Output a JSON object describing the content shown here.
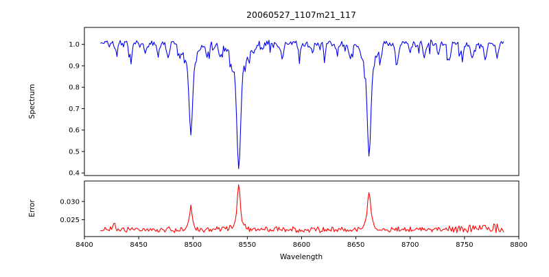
{
  "figure_title": "20060527_1107m21_117",
  "chart_data": [
    {
      "type": "line",
      "name": "spectrum-panel",
      "title": "20060527_1107m21_117",
      "ylabel": "Spectrum",
      "line_color": "#0000ee",
      "xlim": [
        8400,
        8800
      ],
      "ylim": [
        0.388,
        1.079
      ],
      "ytick_labels": [
        "1.0",
        "0.9",
        "0.8",
        "0.7",
        "0.6",
        "0.5",
        "0.4"
      ],
      "x_start": 8415,
      "x_end": 8786,
      "x_step": 1,
      "continuum": 1.003,
      "clip_max": 1.032,
      "noise": {
        "seed": 527,
        "amp1": 0.022,
        "amp2": 0.016,
        "spike_prob": 0.12,
        "spike_max": 0.055
      },
      "absorption_lines": [
        {
          "center": 8498.0,
          "core_depth": 0.31,
          "core_sigma": 1.5,
          "wing_depth": 0.105,
          "wing_sigma": 5.0,
          "min_value": 0.585
        },
        {
          "center": 8542.1,
          "core_depth": 0.45,
          "core_sigma": 1.7,
          "wing_depth": 0.13,
          "wing_sigma": 6.5,
          "min_value": 0.42
        },
        {
          "center": 8662.1,
          "core_depth": 0.4,
          "core_sigma": 1.6,
          "wing_depth": 0.125,
          "wing_sigma": 5.5,
          "min_value": 0.47
        }
      ],
      "minor_lines": [
        {
          "c": 8430,
          "d": 0.045,
          "w": 1.0
        },
        {
          "c": 8443,
          "d": 0.065,
          "w": 1.1
        },
        {
          "c": 8456,
          "d": 0.05,
          "w": 0.9
        },
        {
          "c": 8468,
          "d": 0.045,
          "w": 1.0
        },
        {
          "c": 8477,
          "d": 0.065,
          "w": 1.2
        },
        {
          "c": 8488,
          "d": 0.055,
          "w": 1.0
        },
        {
          "c": 8513,
          "d": 0.055,
          "w": 1.0
        },
        {
          "c": 8519,
          "d": 0.04,
          "w": 0.8
        },
        {
          "c": 8525,
          "d": 0.065,
          "w": 1.1
        },
        {
          "c": 8536,
          "d": 0.05,
          "w": 0.9
        },
        {
          "c": 8556,
          "d": 0.045,
          "w": 1.0
        },
        {
          "c": 8564,
          "d": 0.04,
          "w": 0.9
        },
        {
          "c": 8582,
          "d": 0.075,
          "w": 1.2
        },
        {
          "c": 8598,
          "d": 0.055,
          "w": 1.0
        },
        {
          "c": 8610,
          "d": 0.045,
          "w": 0.9
        },
        {
          "c": 8621,
          "d": 0.05,
          "w": 1.0
        },
        {
          "c": 8633,
          "d": 0.04,
          "w": 0.9
        },
        {
          "c": 8645,
          "d": 0.075,
          "w": 1.2
        },
        {
          "c": 8673,
          "d": 0.05,
          "w": 0.9
        },
        {
          "c": 8688,
          "d": 0.09,
          "w": 1.3
        },
        {
          "c": 8700,
          "d": 0.05,
          "w": 0.9
        },
        {
          "c": 8713,
          "d": 0.065,
          "w": 1.1
        },
        {
          "c": 8726,
          "d": 0.05,
          "w": 0.9
        },
        {
          "c": 8736,
          "d": 0.09,
          "w": 1.3
        },
        {
          "c": 8748,
          "d": 0.06,
          "w": 1.0
        },
        {
          "c": 8757,
          "d": 0.075,
          "w": 1.1
        },
        {
          "c": 8769,
          "d": 0.09,
          "w": 1.2
        },
        {
          "c": 8780,
          "d": 0.055,
          "w": 1.0
        }
      ]
    },
    {
      "type": "line",
      "name": "error-panel",
      "ylabel": "Error",
      "xlabel": "Wavelength",
      "line_color": "#ff0000",
      "xlim": [
        8400,
        8800
      ],
      "ylim": [
        0.0204,
        0.0356
      ],
      "ytick_labels": [
        "0.030",
        "0.025"
      ],
      "xtick_labels": [
        "8400",
        "8450",
        "8500",
        "8550",
        "8600",
        "8650",
        "8700",
        "8750",
        "8800"
      ],
      "x_start": 8415,
      "x_end": 8786,
      "x_step": 1,
      "baseline": 0.0223,
      "clip_max": 0.0352,
      "noise": {
        "seed": 1107,
        "amp1": 0.0011,
        "amp2": 0.0007,
        "boost_from": 8735,
        "boost_factor": 1.8,
        "boost_bias": 0.0004
      },
      "taper_from": 8779,
      "taper_rate": 0.00018,
      "peaks": [
        {
          "center": 8427.0,
          "height": 0.0018,
          "sigma": 1.5
        },
        {
          "center": 8498.0,
          "height": 0.005,
          "sigma": 1.1
        },
        {
          "center": 8498.0,
          "height": 0.0013,
          "sigma": 4.0
        },
        {
          "center": 8542.1,
          "height": 0.0105,
          "sigma": 1.3
        },
        {
          "center": 8542.1,
          "height": 0.002,
          "sigma": 5.0
        },
        {
          "center": 8662.1,
          "height": 0.0082,
          "sigma": 1.4
        },
        {
          "center": 8662.1,
          "height": 0.0018,
          "sigma": 4.5
        }
      ],
      "peak_apex_values": {
        "8498": 0.0286,
        "8542": 0.035,
        "8662": 0.0323
      }
    }
  ]
}
